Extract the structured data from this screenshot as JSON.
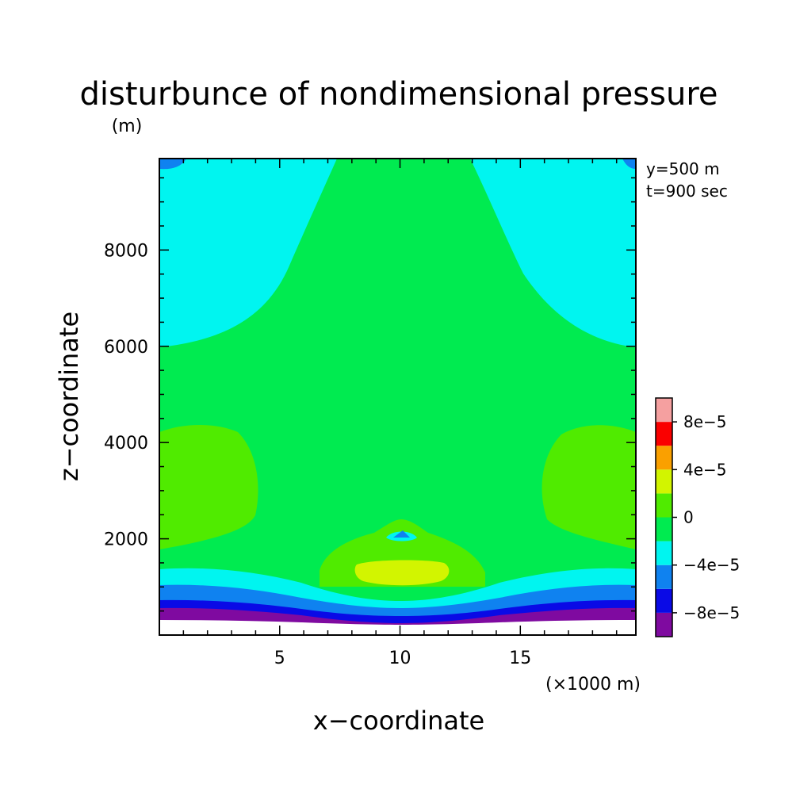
{
  "chart_data": {
    "type": "heatmap",
    "title": "disturbunce of nondimensional pressure",
    "xlabel": "x−coordinate",
    "x_unit": "(×1000 m)",
    "ylabel": "z−coordinate",
    "y_unit": "(m)",
    "annotations": [
      "y=500 m",
      "t=900 sec"
    ],
    "xlim": [
      0,
      19.8
    ],
    "ylim": [
      0,
      9900
    ],
    "x_ticks": [
      5,
      10,
      15
    ],
    "x_tick_labels": [
      "5",
      "10",
      "15"
    ],
    "y_ticks": [
      2000,
      4000,
      6000,
      8000
    ],
    "y_tick_labels": [
      "2000",
      "4000",
      "6000",
      "8000"
    ],
    "grid": false,
    "colorbar": {
      "levels": [
        -0.0001,
        -8e-05,
        -6e-05,
        -4e-05,
        -2e-05,
        0,
        2e-05,
        4e-05,
        6e-05,
        8e-05,
        0.0001
      ],
      "colors": [
        "#7f0aa0",
        "#0a0ae6",
        "#0f82f0",
        "#00f5f0",
        "#00eb50",
        "#50eb00",
        "#d2f500",
        "#faa000",
        "#fa0000",
        "#f5a0a0"
      ],
      "tick_labels": [
        "−8e−5",
        "−4e−5",
        "0",
        "4e−5",
        "8e−5"
      ]
    },
    "background_level": "-2e-5 to 0",
    "regions": [
      {
        "level": "-4e-5 to -2e-5",
        "color": "#00f5f0",
        "location": "upper-left and upper-right corners above ~6000 m; band near 1100-1500 m"
      },
      {
        "level": "0 to 2e-5",
        "color": "#50eb00",
        "location": "side lobes 1800-4400 m near x=0 and x=19.8; bump near x=10, 1300-2400 m"
      },
      {
        "level": "2e-5 to 4e-5",
        "color": "#d2f500",
        "location": "core near x=10, 1200-1650 m"
      },
      {
        "level": "-1e-4 to -8e-5",
        "color": "#7f0aa0",
        "location": "bottom band 250-600 m"
      },
      {
        "level": "-8e-5 to -6e-5",
        "color": "#0a0ae6",
        "location": "band 550-750 m"
      },
      {
        "level": "-6e-5 to -4e-5",
        "color": "#0f82f0",
        "location": "band 750-1100 m; small spot near x=10, 2150 m"
      }
    ],
    "undefined_region": "below ~250 m (white)"
  }
}
